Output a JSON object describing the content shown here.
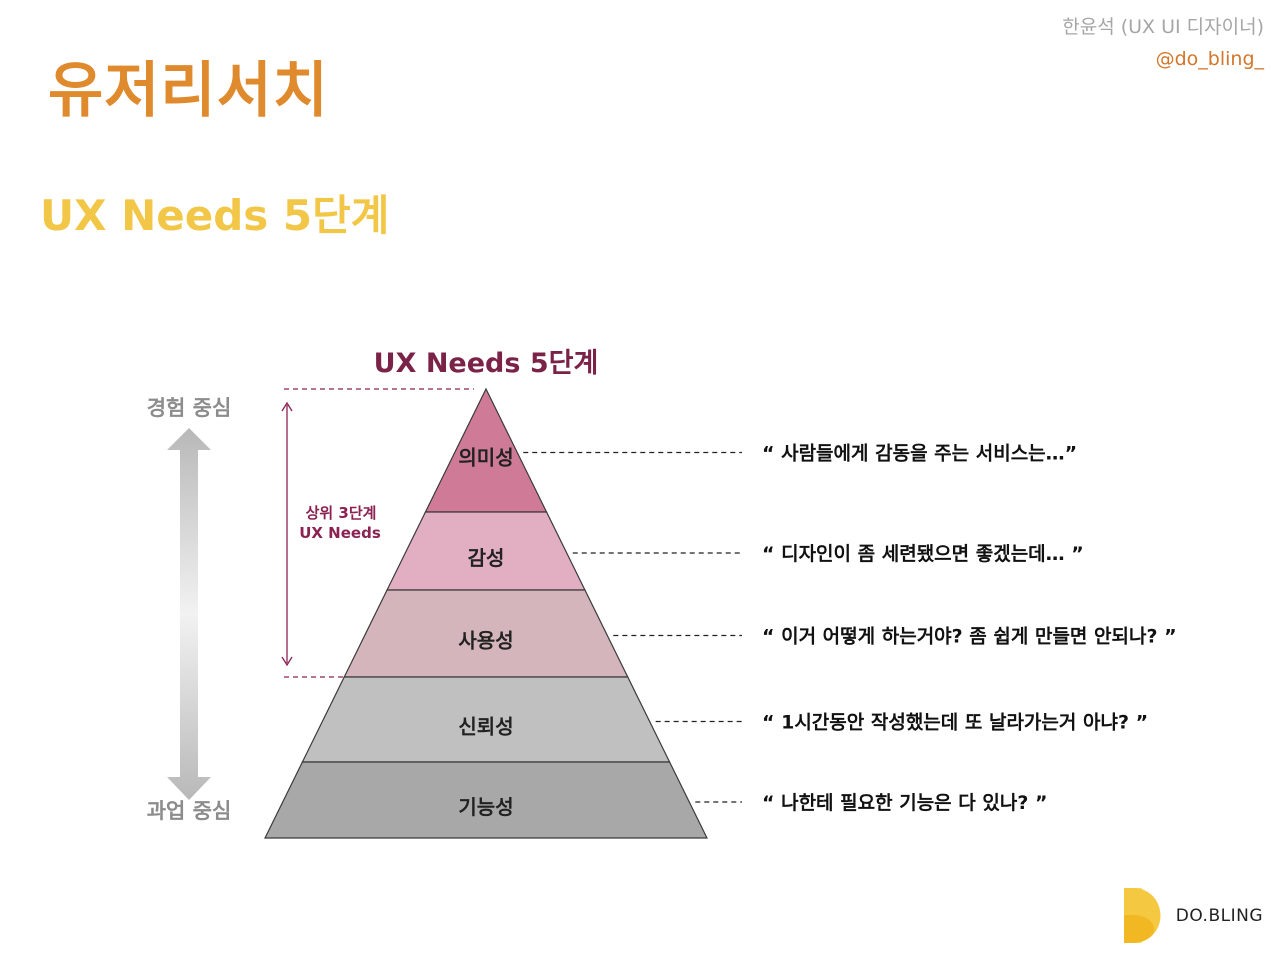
{
  "header": {
    "author": "한윤석 (UX UI 디자이너)",
    "handle": "@do_bling_"
  },
  "page": {
    "title": "유저리서치",
    "subtitle": "UX Needs 5단계"
  },
  "diagram": {
    "title": "UX Needs 5단계",
    "axis_top_label": "경험 중심",
    "axis_bottom_label": "과업 중심",
    "bracket_label_line1": "상위 3단계",
    "bracket_label_line2": "UX Needs",
    "levels": [
      {
        "name": "의미성",
        "quote": "“ 사람들에게 감동을 주는 서비스는…”",
        "color": "#cf7b98"
      },
      {
        "name": "감성",
        "quote": "“ 디자인이 좀 세련됐으면 좋겠는데… ”",
        "color": "#e2afc2"
      },
      {
        "name": "사용성",
        "quote": "“ 이거 어떻게 하는거야? 좀 쉽게 만들면 안되나? ”",
        "color": "#d4b5bb"
      },
      {
        "name": "신뢰성",
        "quote": "“ 1시간동안 작성했는데 또 날라가는거 아냐? ”",
        "color": "#c0c0c0"
      },
      {
        "name": "기능성",
        "quote": "“ 나한테 필요한 기능은 다 있나? ”",
        "color": "#a8a8a8"
      }
    ],
    "accent_color": "#8b2252"
  },
  "logo": {
    "text": "DO.BLING",
    "color": "#f5c842"
  }
}
